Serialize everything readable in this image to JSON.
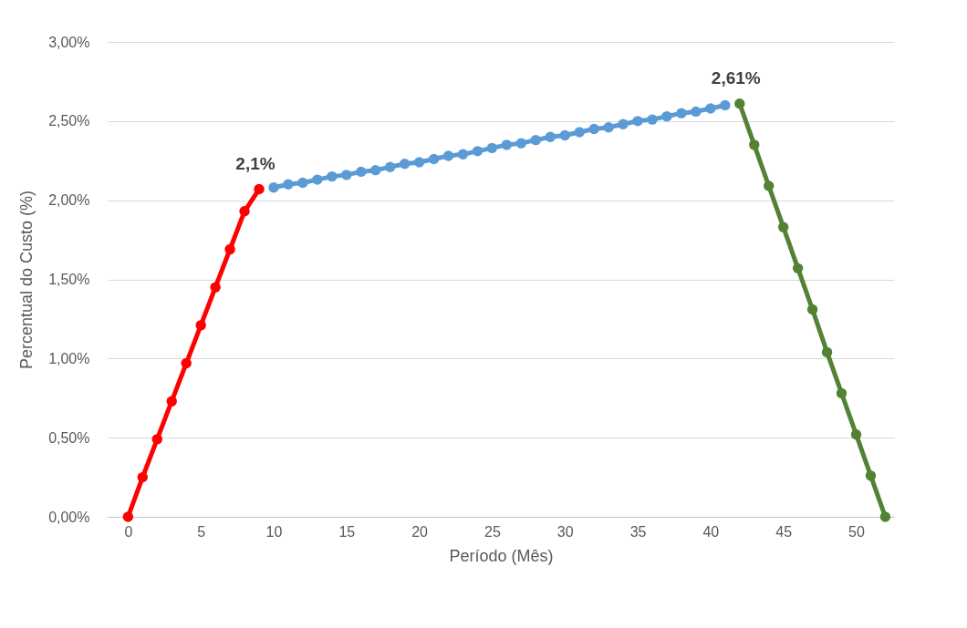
{
  "chart_data": {
    "type": "line",
    "xlabel": "Período (Mês)",
    "ylabel": "Percentual do Custo (%)",
    "xlim": [
      -1.4,
      52.6
    ],
    "xticks": [
      0,
      5,
      10,
      15,
      20,
      25,
      30,
      35,
      40,
      45,
      50
    ],
    "ylim": [
      0,
      3
    ],
    "yticks": [
      {
        "value": 0,
        "label": "0,00%"
      },
      {
        "value": 0.5,
        "label": "0,50%"
      },
      {
        "value": 1,
        "label": "1,00%"
      },
      {
        "value": 1.5,
        "label": "1,50%"
      },
      {
        "value": 2,
        "label": "2,00%"
      },
      {
        "value": 2.5,
        "label": "2,50%"
      },
      {
        "value": 3,
        "label": "3,00%"
      }
    ],
    "grid": "y",
    "legend": false,
    "marker": "circle",
    "line_style": "solid",
    "series": [
      {
        "color": "#ff0000",
        "x": [
          0,
          1,
          2,
          3,
          4,
          5,
          6,
          7,
          8,
          9
        ],
        "values": [
          0,
          0.25,
          0.49,
          0.73,
          0.97,
          1.21,
          1.45,
          1.69,
          1.93,
          2.07
        ]
      },
      {
        "color": "#5b9bd5",
        "x": [
          10,
          11,
          12,
          13,
          14,
          15,
          16,
          17,
          18,
          19,
          20,
          21,
          22,
          23,
          24,
          25,
          26,
          27,
          28,
          29,
          30,
          31,
          32,
          33,
          34,
          35,
          36,
          37,
          38,
          39,
          40,
          41
        ],
        "values": [
          2.08,
          2.1,
          2.11,
          2.13,
          2.15,
          2.16,
          2.18,
          2.19,
          2.21,
          2.23,
          2.24,
          2.26,
          2.28,
          2.29,
          2.31,
          2.33,
          2.35,
          2.36,
          2.38,
          2.4,
          2.41,
          2.43,
          2.45,
          2.46,
          2.48,
          2.5,
          2.51,
          2.53,
          2.55,
          2.56,
          2.58,
          2.6
        ]
      },
      {
        "color": "#548235",
        "x": [
          42,
          43,
          44,
          45,
          46,
          47,
          48,
          49,
          50,
          51,
          52
        ],
        "values": [
          2.61,
          2.35,
          2.09,
          1.83,
          1.57,
          1.31,
          1.04,
          0.78,
          0.52,
          0.26,
          0
        ]
      }
    ],
    "annotations": [
      {
        "text": "2,1%",
        "x": 9,
        "y": 2.07
      },
      {
        "text": "2,61%",
        "x": 42,
        "y": 2.61
      }
    ]
  }
}
